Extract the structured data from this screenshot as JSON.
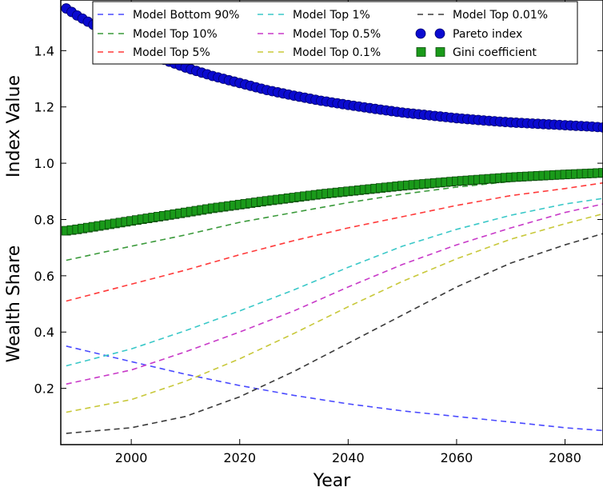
{
  "chart_data": {
    "type": "line",
    "xlabel": "Year",
    "ylabel_top": "Index Value",
    "ylabel_bottom": "Wealth Share",
    "xlim": [
      1987,
      2087
    ],
    "ylim": [
      0.0,
      1.58
    ],
    "xticks": [
      2000,
      2020,
      2040,
      2060,
      2080
    ],
    "yticks": [
      0.2,
      0.4,
      0.6,
      0.8,
      1.0,
      1.2,
      1.4
    ],
    "x": [
      1988,
      2000,
      2010,
      2020,
      2030,
      2040,
      2050,
      2060,
      2070,
      2080,
      2087
    ],
    "legend_position": "top",
    "series": [
      {
        "name": "Model Bottom 90%",
        "color": "#4a4aff",
        "style": "dashed",
        "values": [
          0.35,
          0.295,
          0.25,
          0.21,
          0.175,
          0.145,
          0.12,
          0.1,
          0.08,
          0.06,
          0.05
        ]
      },
      {
        "name": "Model Top 10%",
        "color": "#3a9a3a",
        "style": "dashed",
        "values": [
          0.655,
          0.705,
          0.745,
          0.79,
          0.825,
          0.86,
          0.89,
          0.915,
          0.935,
          0.95,
          0.955
        ]
      },
      {
        "name": "Model Top 5%",
        "color": "#ff3a3a",
        "style": "dashed",
        "values": [
          0.51,
          0.57,
          0.62,
          0.675,
          0.725,
          0.77,
          0.81,
          0.85,
          0.885,
          0.91,
          0.93
        ]
      },
      {
        "name": "Model Top 1%",
        "color": "#3ac8c8",
        "style": "dashed",
        "values": [
          0.28,
          0.34,
          0.405,
          0.475,
          0.55,
          0.63,
          0.705,
          0.765,
          0.815,
          0.855,
          0.875
        ]
      },
      {
        "name": "Model Top 0.5%",
        "color": "#c83ac8",
        "style": "dashed",
        "values": [
          0.215,
          0.265,
          0.33,
          0.4,
          0.475,
          0.56,
          0.64,
          0.71,
          0.77,
          0.825,
          0.855
        ]
      },
      {
        "name": "Model Top 0.1%",
        "color": "#c8c83a",
        "style": "dashed",
        "values": [
          0.115,
          0.16,
          0.225,
          0.305,
          0.395,
          0.49,
          0.58,
          0.66,
          0.73,
          0.785,
          0.82
        ]
      },
      {
        "name": "Model Top 0.01%",
        "color": "#3a3a3a",
        "style": "dashed",
        "values": [
          0.04,
          0.06,
          0.1,
          0.17,
          0.26,
          0.36,
          0.46,
          0.56,
          0.645,
          0.71,
          0.75
        ]
      }
    ],
    "markers": [
      {
        "name": "Pareto index",
        "color": "#0a0ad0",
        "edge": "#00006a",
        "shape": "circle",
        "x": [
          1988,
          1990,
          1995,
          2000,
          2005,
          2010,
          2015,
          2020,
          2025,
          2030,
          2035,
          2040,
          2045,
          2050,
          2055,
          2060,
          2065,
          2070,
          2075,
          2080,
          2085,
          2087
        ],
        "values": [
          1.55,
          1.525,
          1.47,
          1.42,
          1.375,
          1.34,
          1.31,
          1.285,
          1.26,
          1.24,
          1.222,
          1.207,
          1.193,
          1.18,
          1.17,
          1.16,
          1.152,
          1.145,
          1.14,
          1.135,
          1.13,
          1.127
        ]
      },
      {
        "name": "Gini coefficient",
        "color": "#1a9a1a",
        "edge": "#0a4a0a",
        "shape": "square",
        "x": [
          1988,
          1990,
          1995,
          2000,
          2005,
          2010,
          2015,
          2020,
          2025,
          2030,
          2035,
          2040,
          2045,
          2050,
          2055,
          2060,
          2065,
          2070,
          2075,
          2080,
          2085,
          2087
        ],
        "values": [
          0.76,
          0.765,
          0.78,
          0.795,
          0.81,
          0.825,
          0.84,
          0.853,
          0.866,
          0.878,
          0.89,
          0.9,
          0.91,
          0.92,
          0.928,
          0.936,
          0.943,
          0.95,
          0.955,
          0.96,
          0.964,
          0.966
        ]
      }
    ]
  }
}
